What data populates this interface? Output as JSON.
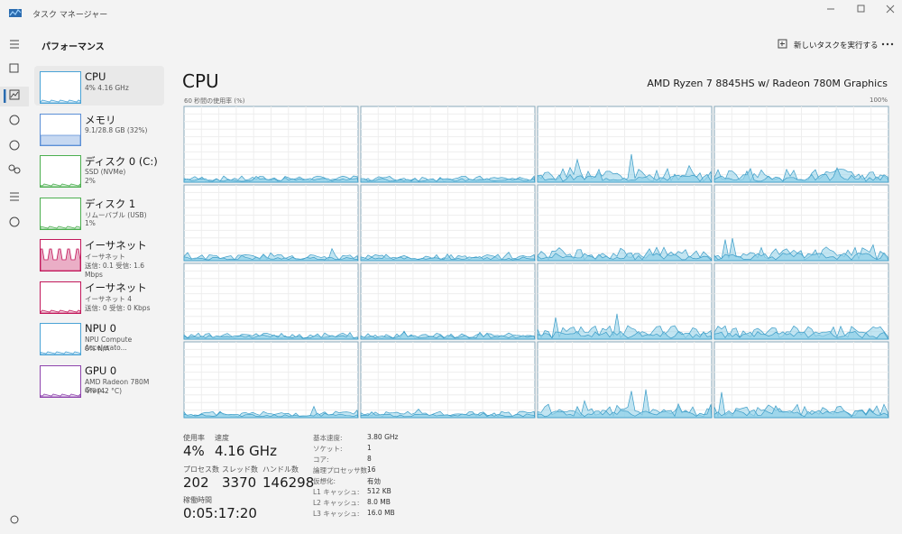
{
  "window": {
    "title": "タスク マネージャー"
  },
  "header": {
    "title": "パフォーマンス",
    "run_task": "新しいタスクを実行する"
  },
  "sidebar": [
    {
      "name": "CPU",
      "lines": [
        "4% 4.16 GHz"
      ],
      "color": "#4aa3d6"
    },
    {
      "name": "メモリ",
      "lines": [
        "9.1/28.8 GB (32%)"
      ],
      "color": "#5b8fd6"
    },
    {
      "name": "ディスク 0 (C:)",
      "lines": [
        "SSD (NVMe)",
        "2%"
      ],
      "color": "#4caf50"
    },
    {
      "name": "ディスク 1",
      "lines": [
        "リムーバブル (USB)",
        "1%"
      ],
      "color": "#4caf50"
    },
    {
      "name": "イーサネット",
      "lines": [
        "イーサネット",
        "送信: 0.1 受信: 1.6 Mbps"
      ],
      "color": "#c2185b"
    },
    {
      "name": "イーサネット",
      "lines": [
        "イーサネット 4",
        "送信: 0 受信: 0 Kbps"
      ],
      "color": "#c2185b"
    },
    {
      "name": "NPU 0",
      "lines": [
        "NPU Compute Accelerato...",
        "0% N/A"
      ],
      "color": "#4aa3d6"
    },
    {
      "name": "GPU 0",
      "lines": [
        "AMD Radeon 780M Grap...",
        "4% (42 °C)"
      ],
      "color": "#8e44ad"
    }
  ],
  "main": {
    "title": "CPU",
    "model": "AMD Ryzen 7 8845HS w/ Radeon 780M Graphics",
    "graph_label": "60 秒間の使用率 (%)",
    "graph_max": "100%"
  },
  "stats": [
    {
      "label": "使用率",
      "value": "4%"
    },
    {
      "label": "速度",
      "value": "4.16 GHz"
    },
    {
      "label": "プロセス数",
      "value": "202"
    },
    {
      "label": "スレッド数",
      "value": "3370"
    },
    {
      "label": "ハンドル数",
      "value": "146298"
    },
    {
      "label": "稼働時間",
      "value": "0:05:17:20"
    }
  ],
  "specs": [
    {
      "label": "基本速度:",
      "value": "3.80 GHz"
    },
    {
      "label": "ソケット:",
      "value": "1"
    },
    {
      "label": "コア:",
      "value": "8"
    },
    {
      "label": "論理プロセッサ数:",
      "value": "16"
    },
    {
      "label": "仮想化:",
      "value": "有効"
    },
    {
      "label": "L1 キャッシュ:",
      "value": "512 KB"
    },
    {
      "label": "L2 キャッシュ:",
      "value": "8.0 MB"
    },
    {
      "label": "L3 キャッシュ:",
      "value": "16.0 MB"
    }
  ]
}
